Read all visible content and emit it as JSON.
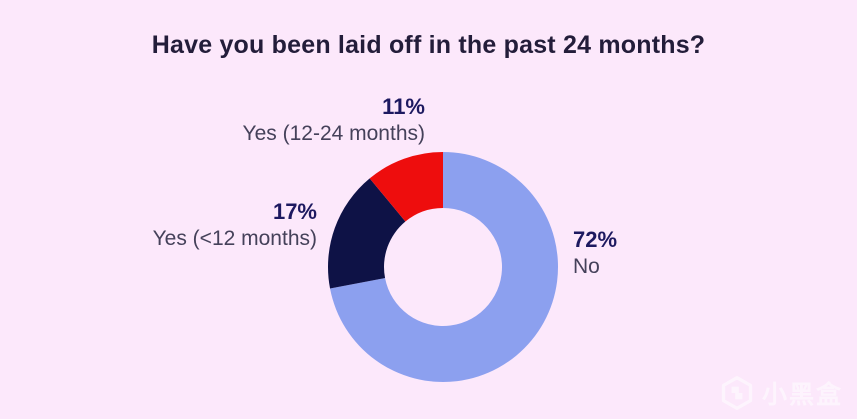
{
  "title": "Have you been laid off in the past 24 months?",
  "colors": {
    "background": "#fce8fb",
    "title_text": "#231d3a",
    "percent_text": "#1d1960",
    "label_text": "#45415a"
  },
  "chart_data": {
    "type": "pie",
    "subtype": "donut",
    "title": "Have you been laid off in the past 24 months?",
    "start_angle_deg": 0,
    "direction": "clockwise",
    "inner_radius_ratio": 0.51,
    "legend_position": "labels-around-chart",
    "slices": [
      {
        "label": "No",
        "value": 72,
        "pct_label": "72%",
        "color": "#8ca0ef"
      },
      {
        "label": "Yes (<12 months)",
        "value": 17,
        "pct_label": "17%",
        "color": "#0e1246"
      },
      {
        "label": "Yes (12-24 months)",
        "value": 11,
        "pct_label": "11%",
        "color": "#ee0d0d"
      }
    ]
  },
  "watermark": {
    "text": "小黑盒",
    "icon": "heybox-logo-icon"
  }
}
